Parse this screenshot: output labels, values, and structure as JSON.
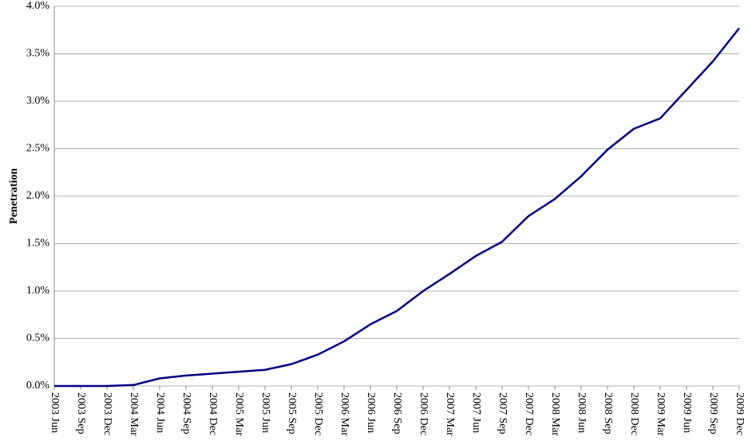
{
  "chart_data": {
    "type": "line",
    "y_label": "Penetration",
    "categories": [
      "2003 Jun",
      "2003 Sep",
      "2003 Dec",
      "2004 Mar",
      "2004 Jun",
      "2004 Sep",
      "2004 Dec",
      "2005 Mar",
      "2005 Jun",
      "2005 Sep",
      "2005 Dec",
      "2006 Mar",
      "2006 Jun",
      "2006 Sep",
      "2006 Dec",
      "2007 Mar",
      "2007 Jun",
      "2007 Sep",
      "2007 Dec",
      "2008 Mar",
      "2008 Jun",
      "2008 Sep",
      "2008 Dec",
      "2009 Mar",
      "2009 Jun",
      "2009 Sep",
      "2009 Dec"
    ],
    "values": [
      0,
      0,
      0,
      0.01,
      0.08,
      0.11,
      0.13,
      0.15,
      0.17,
      0.23,
      0.33,
      0.47,
      0.65,
      0.79,
      1.0,
      1.18,
      1.37,
      1.52,
      1.79,
      1.97,
      2.21,
      2.49,
      2.71,
      2.82,
      3.12,
      3.42,
      3.77
    ],
    "color": "#000080",
    "ylim": [
      0,
      4
    ],
    "yticks": [
      {
        "value": 0,
        "label": "0.0%"
      },
      {
        "value": 0.5,
        "label": "0.5%"
      },
      {
        "value": 1,
        "label": "1.0%"
      },
      {
        "value": 1.5,
        "label": "1.5%"
      },
      {
        "value": 2,
        "label": "2.0%"
      },
      {
        "value": 2.5,
        "label": "2.5%"
      },
      {
        "value": 3,
        "label": "3.0%"
      },
      {
        "value": 3.5,
        "label": "3.5%"
      },
      {
        "value": 4,
        "label": "4.0%"
      }
    ],
    "grid": true
  }
}
